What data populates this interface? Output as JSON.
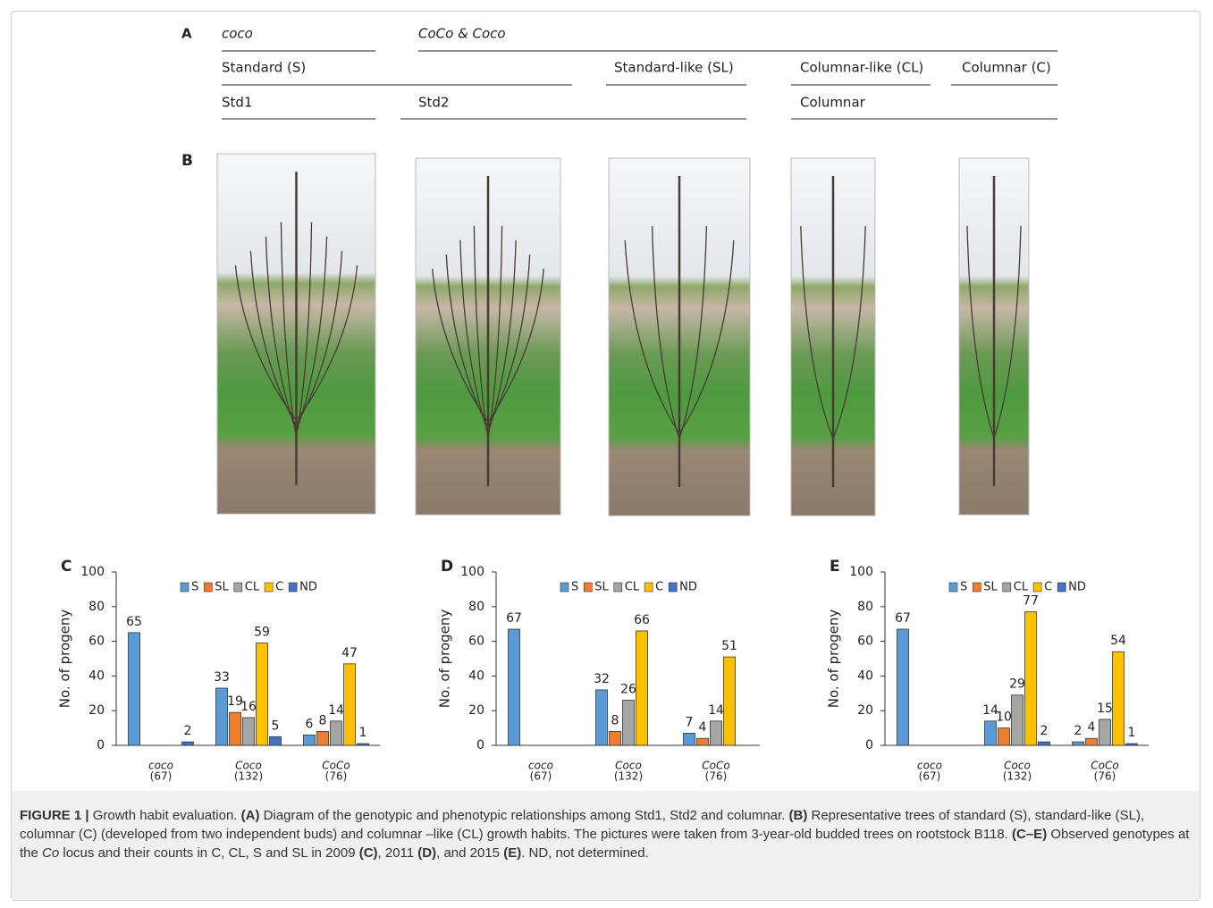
{
  "diagram": {
    "panel": "A",
    "rows": [
      [
        "coco",
        "CoCo & Coco"
      ],
      [
        "Standard (S)",
        "Standard-like (SL)",
        "Columnar-like (CL)",
        "Columnar (C)"
      ],
      [
        "Std1",
        "Std2",
        "Columnar"
      ]
    ]
  },
  "photos": {
    "panel": "B"
  },
  "chart_data": [
    {
      "type": "bar",
      "panel": "C",
      "y_label": "No. of progeny",
      "categories": [
        "coco",
        "Coco",
        "CoCo"
      ],
      "category_counts": [
        "(67)",
        "(132)",
        "(76)"
      ],
      "ylim": [
        0,
        100
      ],
      "yticks": [
        0,
        20,
        40,
        60,
        80,
        100
      ],
      "grid": false,
      "legend": "top",
      "series": [
        {
          "name": "S",
          "color": "#5b9bd5",
          "values": [
            65,
            33,
            6
          ]
        },
        {
          "name": "SL",
          "color": "#ed7d31",
          "values": [
            null,
            19,
            8
          ]
        },
        {
          "name": "CL",
          "color": "#a5a5a5",
          "values": [
            null,
            16,
            14
          ]
        },
        {
          "name": "C",
          "color": "#ffc000",
          "values": [
            null,
            59,
            47
          ]
        },
        {
          "name": "ND",
          "color": "#4472c4",
          "values": [
            2,
            5,
            1
          ]
        }
      ]
    },
    {
      "type": "bar",
      "panel": "D",
      "y_label": "No. of progeny",
      "categories": [
        "coco",
        "Coco",
        "CoCo"
      ],
      "category_counts": [
        "(67)",
        "(132)",
        "(76)"
      ],
      "ylim": [
        0,
        100
      ],
      "yticks": [
        0,
        20,
        40,
        60,
        80,
        100
      ],
      "grid": false,
      "legend": "top",
      "series": [
        {
          "name": "S",
          "color": "#5b9bd5",
          "values": [
            67,
            32,
            7
          ]
        },
        {
          "name": "SL",
          "color": "#ed7d31",
          "values": [
            null,
            8,
            4
          ]
        },
        {
          "name": "CL",
          "color": "#a5a5a5",
          "values": [
            null,
            26,
            14
          ]
        },
        {
          "name": "C",
          "color": "#ffc000",
          "values": [
            null,
            66,
            51
          ]
        },
        {
          "name": "ND",
          "color": "#4472c4",
          "values": [
            null,
            null,
            null
          ]
        }
      ]
    },
    {
      "type": "bar",
      "panel": "E",
      "y_label": "No. of progeny",
      "categories": [
        "coco",
        "Coco",
        "CoCo"
      ],
      "category_counts": [
        "(67)",
        "(132)",
        "(76)"
      ],
      "ylim": [
        0,
        100
      ],
      "yticks": [
        0,
        20,
        40,
        60,
        80,
        100
      ],
      "grid": false,
      "legend": "top",
      "series": [
        {
          "name": "S",
          "color": "#5b9bd5",
          "values": [
            67,
            14,
            2
          ]
        },
        {
          "name": "SL",
          "color": "#ed7d31",
          "values": [
            null,
            10,
            4
          ]
        },
        {
          "name": "CL",
          "color": "#a5a5a5",
          "values": [
            null,
            29,
            15
          ]
        },
        {
          "name": "C",
          "color": "#ffc000",
          "values": [
            null,
            77,
            54
          ]
        },
        {
          "name": "ND",
          "color": "#4472c4",
          "values": [
            null,
            2,
            1
          ]
        }
      ]
    }
  ],
  "caption": {
    "runs": [
      "FIGURE 1 |",
      " Growth habit evaluation. ",
      "(A)",
      " Diagram of the genotypic and phenotypic relationships among Std1, Std2 and columnar. ",
      "(B)",
      " Representative trees of standard (S), standard-like (SL), columnar (C) (developed from two independent buds) and columnar –like (CL) growth habits. The pictures were taken from 3-year-old budded trees on rootstock B118. ",
      "(C–E)",
      " Observed genotypes at the ",
      "Co",
      " locus and their counts in C, CL, S and SL in 2009 ",
      "(C)",
      ", 2011 ",
      "(D)",
      ", and 2015 ",
      "(E)",
      ". ND, not determined."
    ]
  }
}
